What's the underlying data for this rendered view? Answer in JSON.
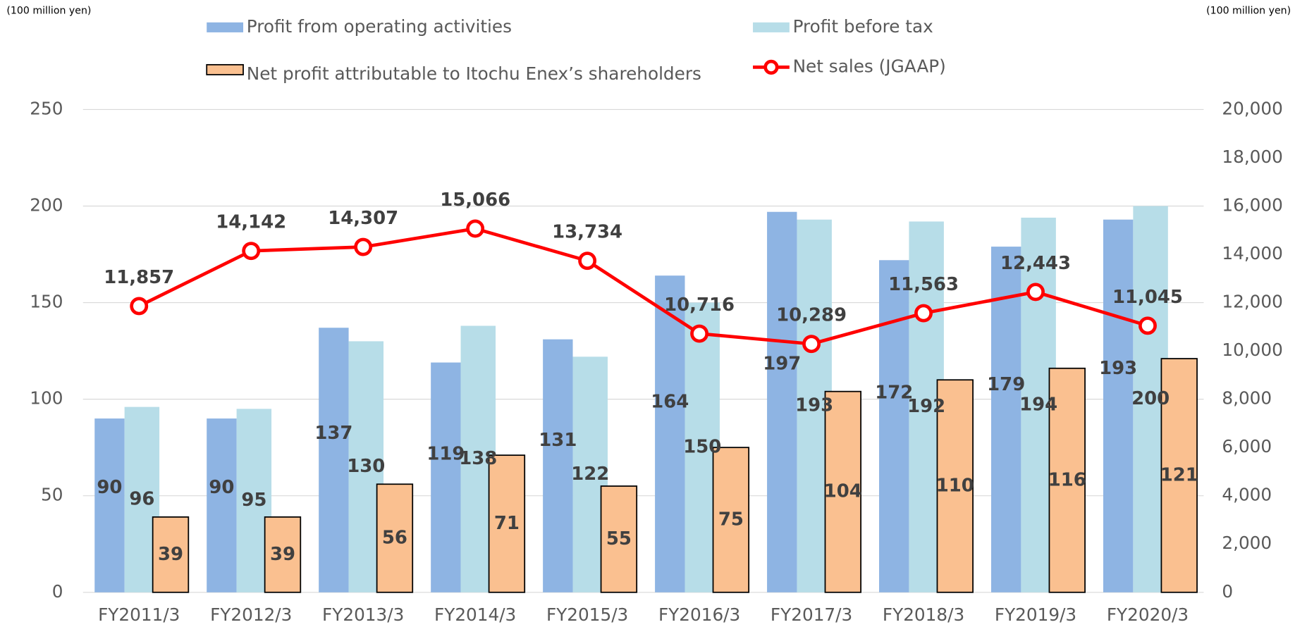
{
  "chart_data": {
    "type": "bar_line",
    "y_unit": "(100 million yen)",
    "y2_unit": "(100 million yen)",
    "categories": [
      "FY2011/3",
      "FY2012/3",
      "FY2013/3",
      "FY2014/3",
      "FY2015/3",
      "FY2016/3",
      "FY2017/3",
      "FY2018/3",
      "FY2019/3",
      "FY2020/3"
    ],
    "series": [
      {
        "name": "Profit from operating activities",
        "color": "#8eb4e3",
        "values": [
          90,
          90,
          137,
          119,
          131,
          164,
          197,
          172,
          179,
          193
        ]
      },
      {
        "name": "Profit before tax",
        "color": "#b7dde8",
        "values": [
          96,
          95,
          130,
          138,
          122,
          150,
          193,
          192,
          194,
          200
        ]
      },
      {
        "name": "Net profit attributable to  Itochu Enex’s shareholders",
        "color": "#fac090",
        "values": [
          39,
          39,
          56,
          71,
          55,
          75,
          104,
          110,
          116,
          121
        ]
      },
      {
        "name": "Net sales (JGAAP)",
        "color": "#ff0000",
        "axis": "y2",
        "values": [
          11857,
          14142,
          14307,
          15066,
          13734,
          10716,
          10289,
          11563,
          12443,
          11045
        ],
        "value_labels": [
          "11,857",
          "14,142",
          "14,307",
          "15,066",
          "13,734",
          "10,716",
          "10,289",
          "11,563",
          "12,443",
          "11,045"
        ]
      }
    ],
    "ylim": [
      0,
      250
    ],
    "yticks": [
      0,
      50,
      100,
      150,
      200,
      250
    ],
    "y2lim": [
      0,
      20000
    ],
    "y2ticks": [
      0,
      {
        "value": 2000,
        "label": "2,000"
      },
      {
        "value": 4000,
        "label": "4,000"
      },
      {
        "value": 6000,
        "label": "6,000"
      },
      {
        "value": 8000,
        "label": "8,000"
      },
      {
        "value": 10000,
        "label": "10,000"
      },
      {
        "value": 12000,
        "label": "12,000"
      },
      {
        "value": 14000,
        "label": "14,000"
      },
      {
        "value": 16000,
        "label": "16,000"
      },
      {
        "value": 18000,
        "label": "18,000"
      },
      {
        "value": 20000,
        "label": "20,000"
      }
    ],
    "grid": true
  }
}
